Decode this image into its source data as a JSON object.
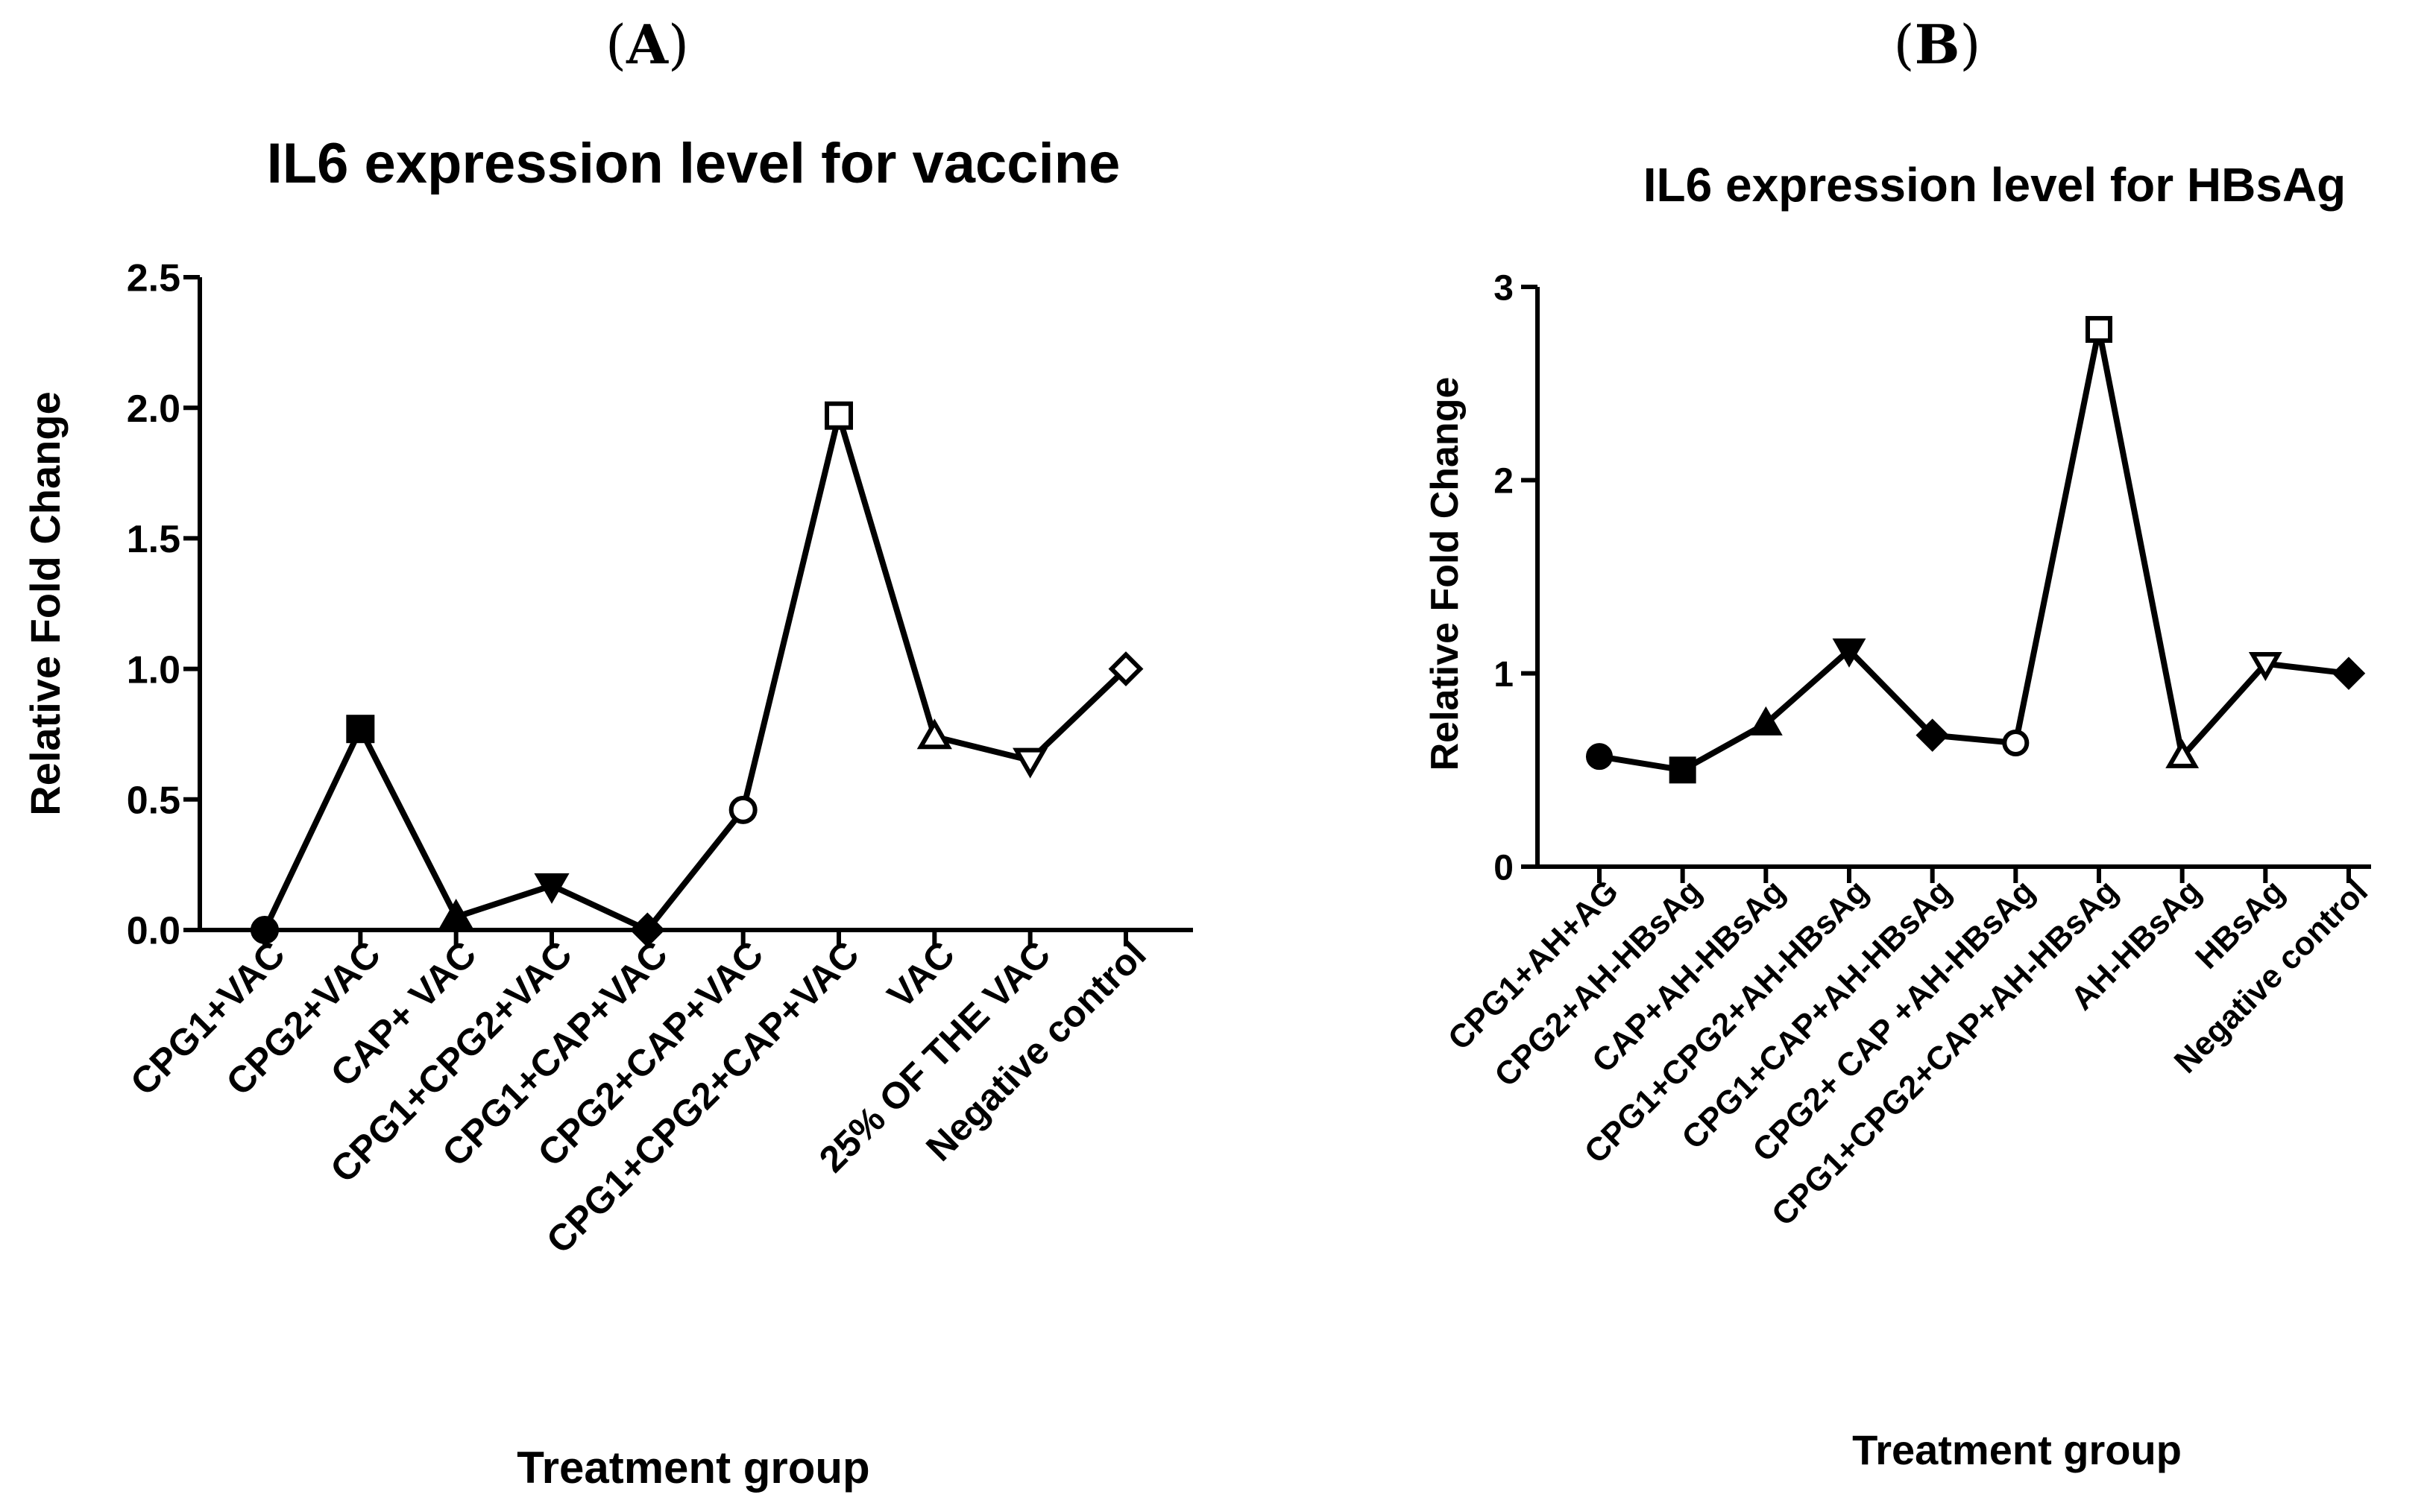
{
  "chart_data": [
    {
      "type": "line",
      "panel_label": "A",
      "title": "IL6 expression level for vaccine",
      "xlabel": "Treatment group",
      "ylabel": "Relative Fold Change",
      "ylim": [
        0,
        2.5
      ],
      "yticks": [
        "0.0",
        "0.5",
        "1.0",
        "1.5",
        "2.0",
        "2.5"
      ],
      "ytick_values": [
        0,
        0.5,
        1.0,
        1.5,
        2.0,
        2.5
      ],
      "grid": false,
      "categories": [
        "CPG1+VAC",
        "CPG2+VAC",
        "CAP+ VAC",
        "CPG1+CPG2+VAC",
        "CPG1+CAP+VAC",
        "CPG2+CAP+VAC",
        "CPG1+CPG2+CAP+VAC",
        "VAC",
        "25% OF THE VAC",
        "Negative  control"
      ],
      "values": [
        0.0,
        0.77,
        0.05,
        0.17,
        0.0,
        0.46,
        1.97,
        0.74,
        0.65,
        1.0
      ],
      "markers": [
        "circle-filled",
        "square-filled",
        "triangle-up-filled",
        "triangle-down-filled",
        "diamond-filled",
        "circle-open",
        "square-open",
        "triangle-up-open",
        "triangle-down-open",
        "diamond-open"
      ]
    },
    {
      "type": "line",
      "panel_label": "B",
      "title": "IL6 expression level for HBsAg",
      "xlabel": "Treatment group",
      "ylabel": "Relative Fold Change",
      "ylim": [
        0,
        3
      ],
      "yticks": [
        "0",
        "1",
        "2",
        "3"
      ],
      "ytick_values": [
        0,
        1,
        2,
        3
      ],
      "grid": false,
      "categories": [
        "CPG1+AH+AG",
        "CPG2+AH-HBsAg",
        "CAP+AH-HBsAg",
        "CPG1+CPG2+AH-HBsAg",
        "CPG1+CAP+AH-HBsAg",
        "CPG2+ CAP +AH-HBsAg",
        "CPG1+CPG2+CAP+AH-HBsAg",
        "AH-HBsAg",
        "HBsAg",
        "Negative control"
      ],
      "values": [
        0.57,
        0.5,
        0.74,
        1.12,
        0.68,
        0.64,
        2.78,
        0.57,
        1.05,
        1.0
      ],
      "markers": [
        "circle-filled",
        "square-filled",
        "triangle-up-filled",
        "triangle-down-filled",
        "diamond-filled",
        "circle-open",
        "square-open",
        "triangle-up-open",
        "triangle-down-open",
        "diamond-filled"
      ]
    }
  ]
}
